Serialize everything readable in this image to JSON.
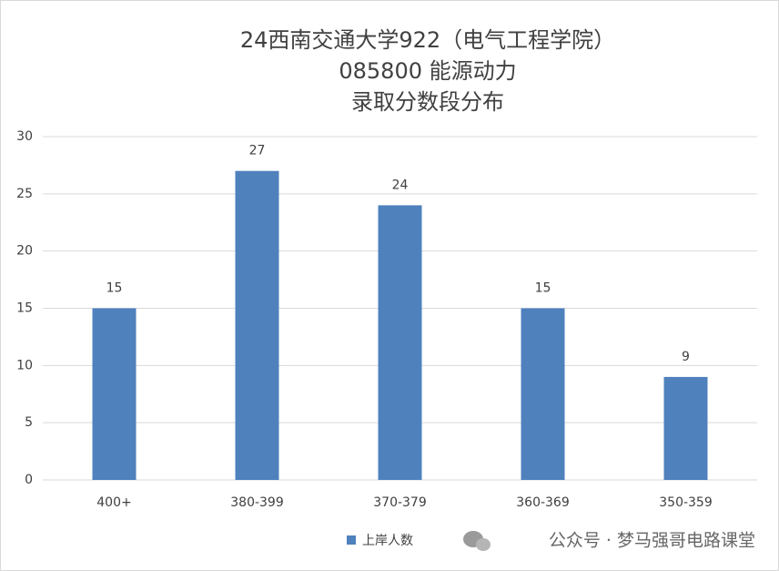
{
  "chart_data": {
    "type": "bar",
    "title": [
      "24西南交通大学922（电气工程学院）",
      "085800 能源动力",
      "录取分数段分布"
    ],
    "categories": [
      "400+",
      "380-399",
      "370-379",
      "360-369",
      "350-359"
    ],
    "series": [
      {
        "name": "上岸人数",
        "color": "#4f81bd",
        "values": [
          15,
          27,
          24,
          15,
          9
        ]
      }
    ],
    "ylim": [
      0,
      30
    ],
    "yticks": [
      0,
      5,
      10,
      15,
      20,
      25,
      30
    ],
    "grid": true,
    "legend": "bottom",
    "watermark": "公众号 · 梦马强哥电路课堂"
  }
}
